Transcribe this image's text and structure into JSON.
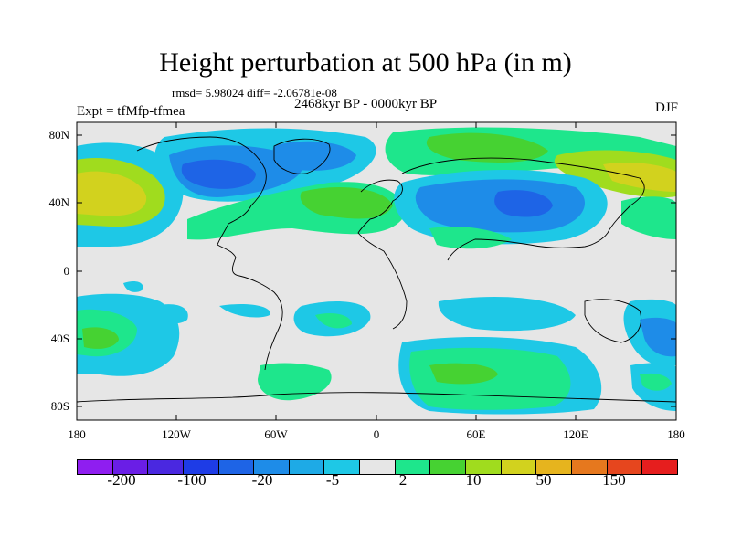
{
  "title": "Height perturbation at 500 hPa (in m)",
  "stats": "rmsd= 5.98024 diff= -2.06781e-08",
  "period": "2468kyr BP - 0000kyr BP",
  "experiment": "Expt = tfMfp-tfmea",
  "season": "DJF",
  "lat_labels": [
    "80N",
    "40N",
    "0",
    "40S",
    "80S"
  ],
  "lon_labels": [
    "180",
    "120W",
    "60W",
    "0",
    "60E",
    "120E",
    "180"
  ],
  "colorbar": {
    "colors": [
      "#8f1ef0",
      "#6a1ee6",
      "#4a28e0",
      "#1e3ce6",
      "#1e64e6",
      "#1e8ce8",
      "#1eaae6",
      "#1ec8e6",
      "#e6e6e6",
      "#1ee68c",
      "#46d232",
      "#a0dc1e",
      "#d2d21e",
      "#e6b41e",
      "#e6781e",
      "#e6461e",
      "#e61e1e"
    ],
    "labels": [
      "-200",
      "-100",
      "-20",
      "-5",
      "2",
      "10",
      "50",
      "150"
    ]
  },
  "colors": {
    "ocean_bg": "#e6e6e6",
    "light_blue": "#1ec8e6",
    "mid_blue": "#1e8ce8",
    "dark_blue": "#1e64e6",
    "green": "#1ee68c",
    "mid_green": "#46d232",
    "yellow_green": "#a0dc1e",
    "yellow": "#d2d21e"
  }
}
